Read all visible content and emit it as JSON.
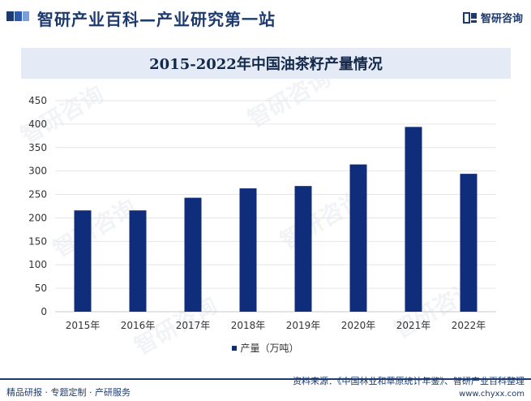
{
  "header": {
    "site_title": "智研产业百科—产业研究第一站",
    "brand": "智研咨询"
  },
  "watermark": "智研咨询",
  "colors": {
    "bar": "#0f2d7a",
    "title_band": "#e4ebf6",
    "brand": "#1c3a6e"
  },
  "chart_data": {
    "type": "bar",
    "title": "2015-2022年中国油茶籽产量情况",
    "categories": [
      "2015年",
      "2016年",
      "2017年",
      "2018年",
      "2019年",
      "2020年",
      "2021年",
      "2022年"
    ],
    "series": [
      {
        "name": "产量（万吨）",
        "values": [
          216,
          216,
          243,
          263,
          268,
          314,
          394,
          294
        ]
      }
    ],
    "ylim": [
      0,
      450
    ],
    "yticks": [
      0,
      50,
      100,
      150,
      200,
      250,
      300,
      350,
      400,
      450
    ],
    "grid": true,
    "legend_position": "bottom"
  },
  "footer": {
    "left": "精品研报 · 专题定制 · 产研服务",
    "source": "资料来源：《中国林业和草原统计年鉴》、智研产业百科整理",
    "url": "www.chyxx.com"
  }
}
